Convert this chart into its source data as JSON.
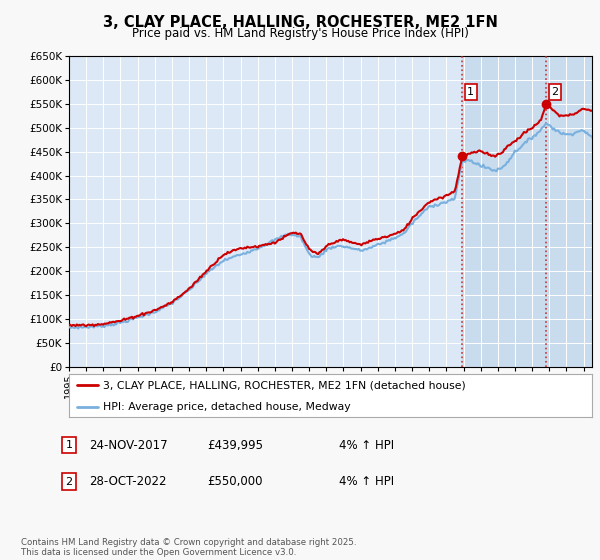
{
  "title": "3, CLAY PLACE, HALLING, ROCHESTER, ME2 1FN",
  "subtitle": "Price paid vs. HM Land Registry's House Price Index (HPI)",
  "legend_line1": "3, CLAY PLACE, HALLING, ROCHESTER, ME2 1FN (detached house)",
  "legend_line2": "HPI: Average price, detached house, Medway",
  "annotation1_label": "1",
  "annotation1_date": "24-NOV-2017",
  "annotation1_price": "£439,995",
  "annotation1_hpi": "4% ↑ HPI",
  "annotation2_label": "2",
  "annotation2_date": "28-OCT-2022",
  "annotation2_price": "£550,000",
  "annotation2_hpi": "4% ↑ HPI",
  "footer": "Contains HM Land Registry data © Crown copyright and database right 2025.\nThis data is licensed under the Open Government Licence v3.0.",
  "ylim_min": 0,
  "ylim_max": 650000,
  "ytick_step": 50000,
  "fig_bg_color": "#f8f8f8",
  "plot_bg_color": "#dce8f5",
  "grid_color": "#ffffff",
  "hpi_line_color": "#7ab0de",
  "price_line_color": "#cc0000",
  "vline_color": "#cc3333",
  "highlight_bg": "#c8dcee",
  "annotation_box_color": "#cc0000",
  "xmin": 1995,
  "xmax": 2025.5,
  "price_date1": 2017.92,
  "price_val1": 439995,
  "price_date2": 2022.83,
  "price_val2": 550000
}
